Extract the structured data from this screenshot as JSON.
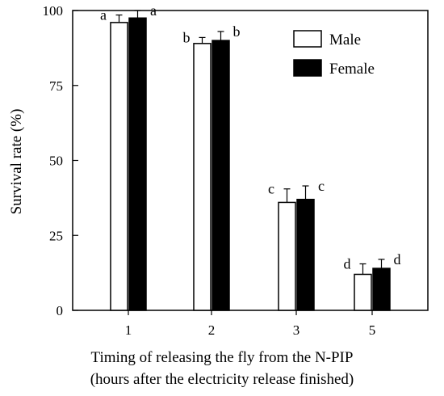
{
  "chart_data": {
    "type": "bar",
    "categories": [
      "1",
      "2",
      "3",
      "5"
    ],
    "series": [
      {
        "name": "Male",
        "values": [
          96,
          89,
          36,
          12
        ],
        "errors": [
          2.5,
          2.0,
          4.5,
          3.5
        ],
        "fill": "#ffffff"
      },
      {
        "name": "Female",
        "values": [
          97.5,
          90,
          37,
          14
        ],
        "errors": [
          2.5,
          3.0,
          4.5,
          3.0
        ],
        "fill": "#000000"
      }
    ],
    "letters": [
      [
        "a",
        "a"
      ],
      [
        "b",
        "b"
      ],
      [
        "c",
        "c"
      ],
      [
        "d",
        "d"
      ]
    ],
    "ylabel": "Survival rate (%)",
    "xlabel_line1": "Timing of releasing the fly from the N-PIP",
    "xlabel_line2": "(hours after the electricity release finished)",
    "ylim": [
      0,
      100
    ],
    "yticks": [
      0,
      25,
      50,
      75,
      100
    ],
    "legend_position": "top-right"
  }
}
